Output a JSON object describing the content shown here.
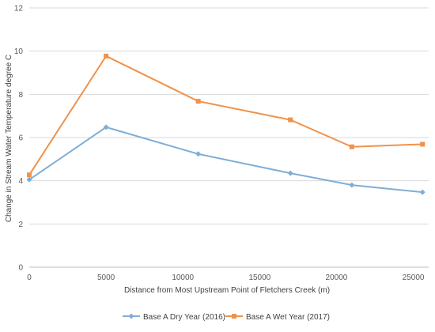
{
  "chart_data": {
    "type": "line",
    "xlabel": "Distance from Most Upstream Point of Fletchers Creek (m)",
    "ylabel": "Change in Stream Water Temperature degree C",
    "xlim": [
      0,
      26000
    ],
    "ylim": [
      0,
      12
    ],
    "x_ticks": [
      0,
      5000,
      10000,
      15000,
      20000,
      25000
    ],
    "y_ticks": [
      0,
      2,
      4,
      6,
      8,
      10,
      12
    ],
    "grid": "horizontal",
    "legend_position": "bottom",
    "series": [
      {
        "name": "Base A Dry Year (2016)",
        "color": "#7fadd6",
        "marker": "diamond",
        "x": [
          0,
          5000,
          11000,
          17000,
          21000,
          25600
        ],
        "values": [
          4.05,
          6.48,
          5.24,
          4.35,
          3.8,
          3.47
        ]
      },
      {
        "name": "Base A Wet Year (2017)",
        "color": "#f0924a",
        "marker": "square",
        "x": [
          0,
          5000,
          11000,
          17000,
          21000,
          25600
        ],
        "values": [
          4.27,
          9.77,
          7.68,
          6.82,
          5.57,
          5.69
        ]
      }
    ]
  }
}
